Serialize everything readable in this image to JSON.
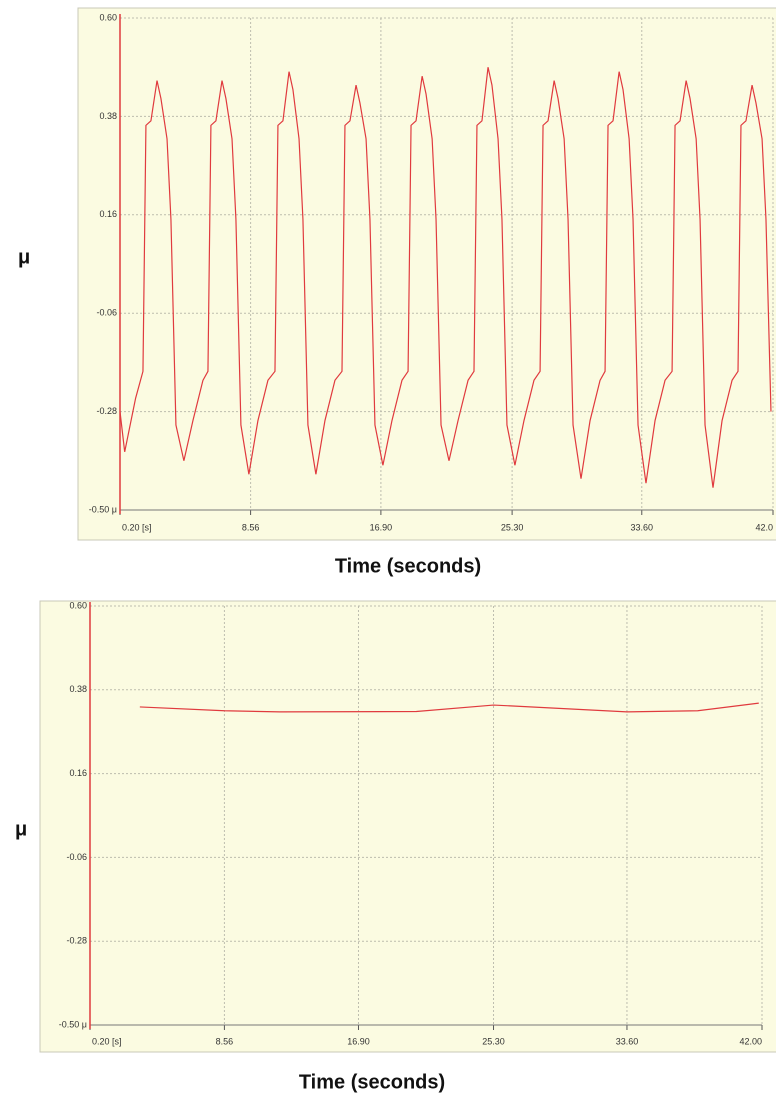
{
  "chart_data": [
    {
      "type": "line",
      "xlabel": "Time (seconds)",
      "ylabel": "μ",
      "color": "#e03a3e",
      "xlim": [
        0.2,
        42.0
      ],
      "ylim": [
        -0.5,
        0.6
      ],
      "xticks": [
        {
          "value": 0.2,
          "label": "0.20 [s]"
        },
        8.56,
        {
          "value": 16.9,
          "label": "16.90"
        },
        {
          "value": 25.3,
          "label": "25.30"
        },
        {
          "value": 33.6,
          "label": "33.60"
        },
        {
          "value": 42.0,
          "label": "42.0"
        }
      ],
      "yticks": [
        {
          "value": -0.5,
          "label": "-0.50 μ"
        },
        -0.28,
        -0.06,
        0.16,
        0.38,
        {
          "value": 0.6,
          "label": "0.60"
        }
      ],
      "grid": true,
      "x": [
        0.2,
        0.5,
        1.2,
        1.67,
        1.86,
        2.18,
        2.57,
        2.82,
        3.21,
        3.46,
        3.78,
        4.29,
        4.87,
        5.51,
        5.83,
        6.02,
        6.34,
        6.73,
        6.98,
        7.37,
        7.62,
        7.94,
        8.45,
        9.03,
        9.67,
        10.12,
        10.31,
        10.63,
        11.02,
        11.27,
        11.66,
        11.91,
        12.23,
        12.74,
        13.32,
        13.96,
        14.41,
        14.6,
        14.92,
        15.31,
        15.56,
        15.95,
        16.2,
        16.52,
        17.03,
        17.61,
        18.25,
        18.64,
        18.83,
        19.15,
        19.54,
        19.79,
        20.18,
        20.43,
        20.75,
        21.26,
        21.84,
        22.48,
        22.86,
        23.05,
        23.37,
        23.76,
        24.01,
        24.4,
        24.65,
        24.97,
        25.48,
        26.06,
        26.7,
        27.09,
        27.28,
        27.6,
        27.99,
        28.24,
        28.63,
        28.88,
        29.2,
        29.71,
        30.29,
        30.93,
        31.25,
        31.44,
        31.76,
        32.15,
        32.4,
        32.79,
        33.04,
        33.36,
        33.87,
        34.45,
        35.09,
        35.54,
        35.73,
        36.05,
        36.44,
        36.69,
        37.08,
        37.33,
        37.65,
        38.16,
        38.74,
        39.38,
        39.76,
        39.95,
        40.27,
        40.66,
        40.91,
        41.3,
        41.55,
        41.87
      ],
      "values": [
        -0.28,
        -0.37,
        -0.25,
        -0.19,
        0.36,
        0.37,
        0.46,
        0.42,
        0.33,
        0.15,
        -0.31,
        -0.39,
        -0.3,
        -0.21,
        -0.19,
        0.36,
        0.37,
        0.46,
        0.42,
        0.33,
        0.15,
        -0.31,
        -0.42,
        -0.3,
        -0.21,
        -0.19,
        0.36,
        0.37,
        0.48,
        0.44,
        0.33,
        0.15,
        -0.31,
        -0.42,
        -0.3,
        -0.21,
        -0.19,
        0.36,
        0.37,
        0.45,
        0.41,
        0.33,
        0.15,
        -0.31,
        -0.4,
        -0.3,
        -0.21,
        -0.19,
        0.36,
        0.37,
        0.47,
        0.43,
        0.33,
        0.15,
        -0.31,
        -0.39,
        -0.3,
        -0.21,
        -0.19,
        0.36,
        0.37,
        0.49,
        0.45,
        0.33,
        0.15,
        -0.31,
        -0.4,
        -0.3,
        -0.21,
        -0.19,
        0.36,
        0.37,
        0.46,
        0.42,
        0.33,
        0.15,
        -0.31,
        -0.43,
        -0.3,
        -0.21,
        -0.19,
        0.36,
        0.37,
        0.48,
        0.44,
        0.33,
        0.15,
        -0.31,
        -0.44,
        -0.3,
        -0.21,
        -0.19,
        0.36,
        0.37,
        0.46,
        0.42,
        0.33,
        0.15,
        -0.31,
        -0.45,
        -0.3,
        -0.21,
        -0.19,
        0.36,
        0.37,
        0.45,
        0.41,
        0.33,
        0.15,
        -0.28
      ]
    },
    {
      "type": "line",
      "xlabel": "Time (seconds)",
      "ylabel": "μ",
      "color": "#e03a3e",
      "xlim": [
        0.2,
        42.0
      ],
      "ylim": [
        -0.5,
        0.6
      ],
      "xticks": [
        {
          "value": 0.2,
          "label": "0.20 [s]"
        },
        8.56,
        {
          "value": 16.9,
          "label": "16.90"
        },
        {
          "value": 25.3,
          "label": "25.30"
        },
        {
          "value": 33.6,
          "label": "33.60"
        },
        {
          "value": 42.0,
          "label": "42.00"
        }
      ],
      "yticks": [
        {
          "value": -0.5,
          "label": "-0.50 μ"
        },
        -0.28,
        -0.06,
        0.16,
        0.38,
        {
          "value": 0.6,
          "label": "0.60"
        }
      ],
      "grid": true,
      "x": [
        3.3,
        8.56,
        12.0,
        20.5,
        25.3,
        33.6,
        38.0,
        41.8
      ],
      "values": [
        0.335,
        0.325,
        0.322,
        0.323,
        0.34,
        0.322,
        0.325,
        0.345
      ]
    }
  ]
}
